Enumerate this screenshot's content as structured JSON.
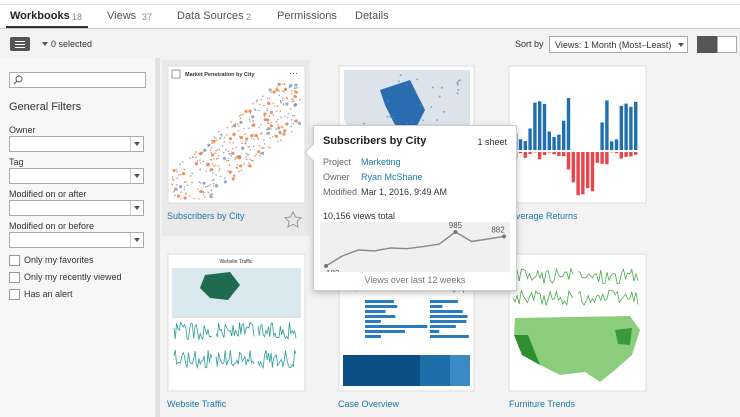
{
  "tabs": [
    {
      "label": "Workbooks",
      "count": 18
    },
    {
      "label": "Views",
      "count": 37
    },
    {
      "label": "Data Sources",
      "count": 2
    },
    {
      "label": "Permissions"
    },
    {
      "label": "Details"
    }
  ],
  "toolbar": {
    "selected": "0 selected",
    "sort_label": "Sort by",
    "sort_value": "Views: 1 Month (Most–Least)"
  },
  "filters": {
    "title": "General Filters",
    "fields": [
      "Owner",
      "Tag",
      "Modified on or after",
      "Modified on or before"
    ],
    "checkboxes": [
      "Only my favorites",
      "Only my recently viewed",
      "Has an alert"
    ]
  },
  "cards": [
    {
      "title": "Subscribers by City",
      "thumb_title": "Market Penetration by City"
    },
    {
      "title": "verage Returns"
    },
    {
      "title": "Website Traffic",
      "thumb_title": "Website Traffic"
    },
    {
      "title": "Case Overview"
    },
    {
      "title": "Furniture Trends"
    }
  ],
  "popup": {
    "title": "Subscribers by City",
    "sheets": "1 sheet",
    "rows": [
      {
        "label": "Project",
        "value": "Marketing"
      },
      {
        "label": "Owner",
        "value": "Ryan McShane"
      },
      {
        "label": "Modified",
        "value": "Mar 1, 2016, 9:49 AM"
      }
    ],
    "views_total": "10,156 views total",
    "sparkline": {
      "type": "line",
      "values": [
        183,
        420,
        560,
        540,
        610,
        590,
        640,
        700,
        985,
        760,
        820,
        882
      ],
      "caption": "Views over last 12 weeks"
    }
  }
}
